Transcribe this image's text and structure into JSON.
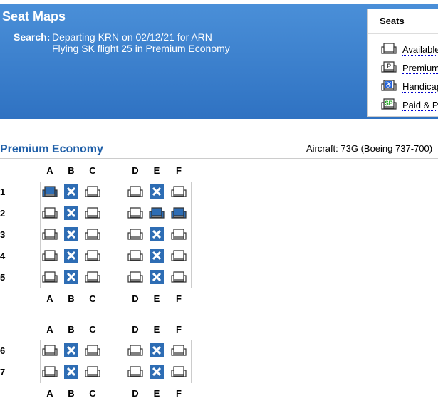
{
  "header": {
    "title": "Seat Maps",
    "search_label": "Search:",
    "search_line1": "Departing KRN on 02/12/21 for ARN",
    "search_line2": "Flying SK flight 25 in Premium Economy"
  },
  "legend": {
    "title": "Seats",
    "items": [
      {
        "label": "Available",
        "icon": "seat-available-icon"
      },
      {
        "label": "Premium",
        "icon": "seat-premium-icon"
      },
      {
        "label": "Handicap",
        "icon": "seat-handicap-icon"
      },
      {
        "label": "Paid & P",
        "icon": "seat-paid-icon"
      }
    ]
  },
  "section": {
    "title": "Premium Economy",
    "aircraft": "Aircraft: 73G (Boeing 737-700)"
  },
  "colors": {
    "header": "#2f72c2",
    "selected": "#2e6db4",
    "occupied": "#2e6db4"
  },
  "columns": [
    "A",
    "B",
    "C",
    "D",
    "E",
    "F"
  ],
  "blocks": [
    {
      "rows": [
        {
          "num": "1",
          "seats": [
            "selected",
            "occupied",
            "available",
            "available",
            "occupied",
            "available"
          ]
        },
        {
          "num": "2",
          "seats": [
            "available",
            "occupied",
            "available",
            "available",
            "selected",
            "selected"
          ]
        },
        {
          "num": "3",
          "seats": [
            "available",
            "occupied",
            "available",
            "available",
            "occupied",
            "available"
          ]
        },
        {
          "num": "4",
          "seats": [
            "available",
            "occupied",
            "available",
            "available",
            "occupied",
            "available"
          ]
        },
        {
          "num": "5",
          "seats": [
            "available",
            "occupied",
            "available",
            "available",
            "occupied",
            "available"
          ]
        }
      ]
    },
    {
      "rows": [
        {
          "num": "6",
          "seats": [
            "available",
            "occupied",
            "available",
            "available",
            "occupied",
            "available"
          ]
        },
        {
          "num": "7",
          "seats": [
            "available",
            "occupied",
            "available",
            "available",
            "occupied",
            "available"
          ]
        }
      ]
    }
  ]
}
